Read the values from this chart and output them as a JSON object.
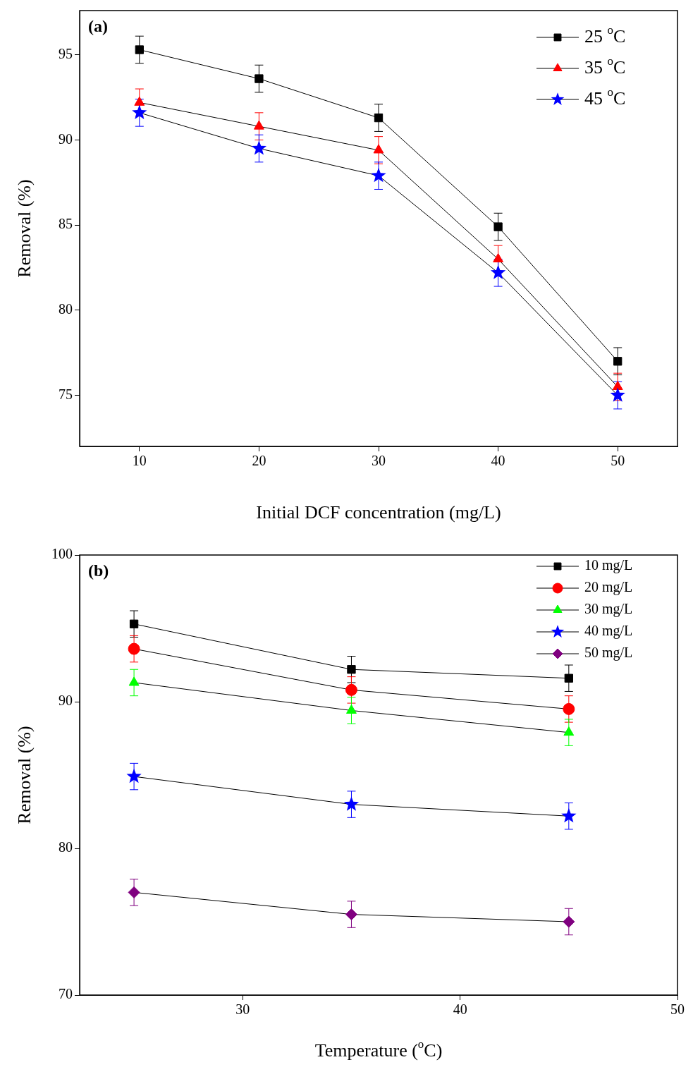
{
  "chart_data": [
    {
      "type": "line",
      "xlabel": "Initial DCF concentration (mg/L)",
      "ylabel": "Removal (%)",
      "annotations": [
        "(a)"
      ],
      "x": [
        10,
        20,
        30,
        40,
        50
      ],
      "xlim": [
        5,
        55
      ],
      "xticks": [
        10,
        20,
        30,
        40,
        50
      ],
      "ylim": [
        72,
        97.6
      ],
      "yticks": [
        75,
        80,
        85,
        90,
        95
      ],
      "legend": "top right",
      "grid": false,
      "series": [
        {
          "name": "25 $^{o}$C",
          "color": "#000000",
          "marker": "square",
          "values": [
            95.3,
            93.6,
            91.3,
            84.9,
            77.0
          ],
          "errors": [
            0.8,
            0.8,
            0.8,
            0.8,
            0.8
          ]
        },
        {
          "name": "35 $^{o}$C",
          "color": "#ff0000",
          "marker": "triangle",
          "values": [
            92.2,
            90.8,
            89.4,
            83.0,
            75.5
          ],
          "errors": [
            0.8,
            0.8,
            0.8,
            0.8,
            0.8
          ]
        },
        {
          "name": "45 $^{o}$C",
          "color": "#0000ff",
          "marker": "star",
          "values": [
            91.6,
            89.5,
            87.9,
            82.2,
            75.0
          ],
          "errors": [
            0.8,
            0.8,
            0.8,
            0.8,
            0.8
          ]
        }
      ]
    },
    {
      "type": "line",
      "xlabel": "Temperature ($^{o}$C)",
      "ylabel": "Removal (%)",
      "annotations": [
        "(b)"
      ],
      "x": [
        25,
        35,
        45
      ],
      "xlim": [
        22.5,
        50
      ],
      "xticks": [
        30,
        40,
        50
      ],
      "ylim": [
        70,
        100
      ],
      "yticks": [
        70,
        80,
        90,
        100
      ],
      "legend": "top right",
      "grid": false,
      "series": [
        {
          "name": "10 mg/L",
          "color": "#000000",
          "marker": "square",
          "values": [
            95.3,
            92.2,
            91.6
          ],
          "errors": [
            0.9,
            0.9,
            0.9
          ]
        },
        {
          "name": "20 mg/L",
          "color": "#ff0000",
          "marker": "circle",
          "values": [
            93.6,
            90.8,
            89.5
          ],
          "errors": [
            0.9,
            0.9,
            0.9
          ]
        },
        {
          "name": "30 mg/L",
          "color": "#00ff00",
          "marker": "triangle",
          "values": [
            91.3,
            89.4,
            87.9
          ],
          "errors": [
            0.9,
            0.9,
            0.9
          ]
        },
        {
          "name": "40 mg/L",
          "color": "#0000ff",
          "marker": "star",
          "values": [
            84.9,
            83.0,
            82.2
          ],
          "errors": [
            0.9,
            0.9,
            0.9
          ]
        },
        {
          "name": "50 mg/L",
          "color": "#800080",
          "marker": "diamond",
          "values": [
            77.0,
            75.5,
            75.0
          ],
          "errors": [
            0.9,
            0.9,
            0.9
          ]
        }
      ]
    }
  ]
}
